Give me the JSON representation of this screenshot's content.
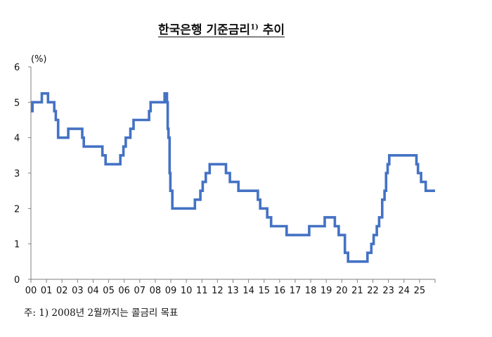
{
  "title": "한국은행 기준금리",
  "title_sup": "1)",
  "title_suffix": "추이",
  "footnote": "주: 1) 2008년 2월까지는 콜금리 목표",
  "colors": {
    "line": "#4472C4",
    "axis": "#7f7f7f"
  },
  "chart_data": {
    "type": "line",
    "title": "한국은행 기준금리1) 추이",
    "ylabel": "(%)",
    "xlabel": "",
    "ylim": [
      0,
      6
    ],
    "xlim": [
      2000.0,
      2026.0
    ],
    "yticks": [
      0,
      1,
      2,
      3,
      4,
      5,
      6
    ],
    "xticks": [
      "00",
      "01",
      "02",
      "03",
      "04",
      "05",
      "06",
      "07",
      "08",
      "09",
      "10",
      "11",
      "12",
      "13",
      "14",
      "15",
      "16",
      "17",
      "18",
      "19",
      "20",
      "21",
      "22",
      "23",
      "24",
      "25"
    ],
    "grid": false,
    "legend": "none",
    "series": [
      {
        "color": "#4472C4",
        "step": true,
        "points": [
          [
            2000.0,
            4.75
          ],
          [
            2000.1,
            5.0
          ],
          [
            2000.7,
            5.25
          ],
          [
            2001.1,
            5.0
          ],
          [
            2001.5,
            4.75
          ],
          [
            2001.6,
            4.5
          ],
          [
            2001.75,
            4.0
          ],
          [
            2002.4,
            4.25
          ],
          [
            2003.3,
            4.0
          ],
          [
            2003.4,
            3.75
          ],
          [
            2004.6,
            3.5
          ],
          [
            2004.8,
            3.25
          ],
          [
            2005.75,
            3.5
          ],
          [
            2005.95,
            3.75
          ],
          [
            2006.1,
            4.0
          ],
          [
            2006.4,
            4.25
          ],
          [
            2006.6,
            4.5
          ],
          [
            2007.6,
            4.75
          ],
          [
            2007.7,
            5.0
          ],
          [
            2008.6,
            5.25
          ],
          [
            2008.75,
            5.0
          ],
          [
            2008.8,
            4.25
          ],
          [
            2008.85,
            4.0
          ],
          [
            2008.92,
            3.0
          ],
          [
            2008.97,
            2.5
          ],
          [
            2009.1,
            2.0
          ],
          [
            2010.55,
            2.25
          ],
          [
            2010.9,
            2.5
          ],
          [
            2011.05,
            2.75
          ],
          [
            2011.25,
            3.0
          ],
          [
            2011.5,
            3.25
          ],
          [
            2012.55,
            3.0
          ],
          [
            2012.8,
            2.75
          ],
          [
            2013.35,
            2.5
          ],
          [
            2014.6,
            2.25
          ],
          [
            2014.75,
            2.0
          ],
          [
            2015.2,
            1.75
          ],
          [
            2015.45,
            1.5
          ],
          [
            2016.45,
            1.25
          ],
          [
            2017.9,
            1.5
          ],
          [
            2018.9,
            1.75
          ],
          [
            2019.55,
            1.5
          ],
          [
            2019.8,
            1.25
          ],
          [
            2020.2,
            0.75
          ],
          [
            2020.4,
            0.5
          ],
          [
            2021.65,
            0.75
          ],
          [
            2021.9,
            1.0
          ],
          [
            2022.05,
            1.25
          ],
          [
            2022.25,
            1.5
          ],
          [
            2022.4,
            1.75
          ],
          [
            2022.6,
            2.25
          ],
          [
            2022.75,
            2.5
          ],
          [
            2022.85,
            3.0
          ],
          [
            2022.95,
            3.25
          ],
          [
            2023.05,
            3.5
          ],
          [
            2024.8,
            3.25
          ],
          [
            2024.9,
            3.0
          ],
          [
            2025.1,
            2.75
          ],
          [
            2025.4,
            2.5
          ],
          [
            2026.0,
            2.5
          ]
        ]
      }
    ]
  }
}
